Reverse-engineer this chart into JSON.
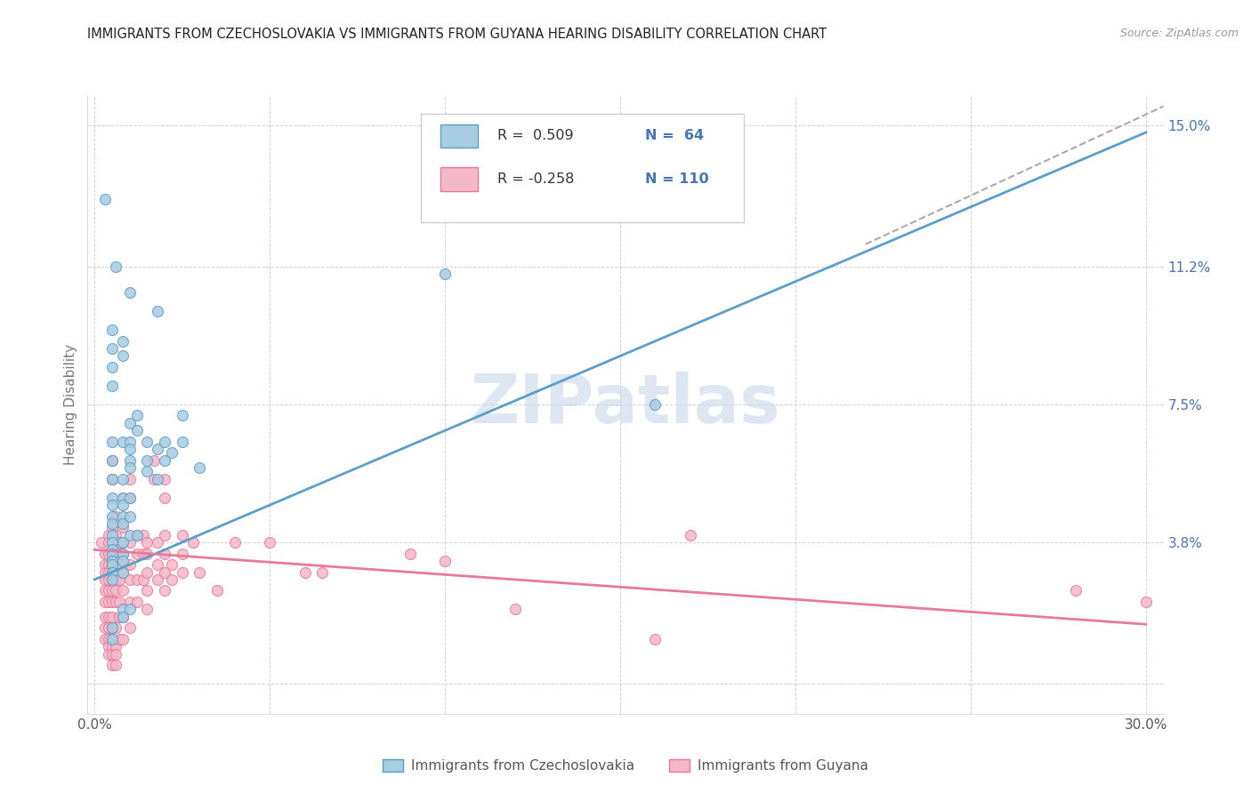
{
  "title": "IMMIGRANTS FROM CZECHOSLOVAKIA VS IMMIGRANTS FROM GUYANA HEARING DISABILITY CORRELATION CHART",
  "source": "Source: ZipAtlas.com",
  "ylabel": "Hearing Disability",
  "yticks": [
    0.0,
    0.038,
    0.075,
    0.112,
    0.15
  ],
  "ytick_labels": [
    "",
    "3.8%",
    "7.5%",
    "11.2%",
    "15.0%"
  ],
  "xticks": [
    0.0,
    0.05,
    0.1,
    0.15,
    0.2,
    0.25,
    0.3
  ],
  "xlim": [
    -0.002,
    0.305
  ],
  "ylim": [
    -0.008,
    0.158
  ],
  "color_blue": "#a8cce0",
  "color_blue_edge": "#5b9ec9",
  "color_pink": "#f5b8c8",
  "color_pink_edge": "#e8799a",
  "color_blue_line": "#5b9ec9",
  "color_pink_line": "#e8799a",
  "color_tick_label": "#4575b4",
  "color_n_value": "#4575b4",
  "color_r_label": "#333333",
  "watermark_color": "#c8d8e8",
  "legend_label1": "Immigrants from Czechoslovakia",
  "legend_label2": "Immigrants from Guyana",
  "blue_line": [
    [
      0.0,
      0.028
    ],
    [
      0.3,
      0.148
    ]
  ],
  "pink_line": [
    [
      0.0,
      0.036
    ],
    [
      0.3,
      0.016
    ]
  ],
  "gray_dash_line": [
    [
      0.22,
      0.118
    ],
    [
      0.305,
      0.155
    ]
  ],
  "scatter_blue": [
    [
      0.003,
      0.13
    ],
    [
      0.006,
      0.112
    ],
    [
      0.01,
      0.105
    ],
    [
      0.018,
      0.1
    ],
    [
      0.005,
      0.095
    ],
    [
      0.005,
      0.09
    ],
    [
      0.005,
      0.085
    ],
    [
      0.005,
      0.08
    ],
    [
      0.008,
      0.092
    ],
    [
      0.008,
      0.088
    ],
    [
      0.005,
      0.065
    ],
    [
      0.008,
      0.065
    ],
    [
      0.005,
      0.06
    ],
    [
      0.005,
      0.055
    ],
    [
      0.005,
      0.05
    ],
    [
      0.005,
      0.048
    ],
    [
      0.005,
      0.045
    ],
    [
      0.005,
      0.043
    ],
    [
      0.005,
      0.04
    ],
    [
      0.005,
      0.038
    ],
    [
      0.005,
      0.036
    ],
    [
      0.005,
      0.035
    ],
    [
      0.005,
      0.033
    ],
    [
      0.005,
      0.032
    ],
    [
      0.005,
      0.03
    ],
    [
      0.005,
      0.028
    ],
    [
      0.008,
      0.055
    ],
    [
      0.008,
      0.05
    ],
    [
      0.008,
      0.048
    ],
    [
      0.008,
      0.045
    ],
    [
      0.008,
      0.043
    ],
    [
      0.008,
      0.038
    ],
    [
      0.008,
      0.035
    ],
    [
      0.008,
      0.033
    ],
    [
      0.008,
      0.03
    ],
    [
      0.008,
      0.02
    ],
    [
      0.01,
      0.07
    ],
    [
      0.01,
      0.065
    ],
    [
      0.01,
      0.063
    ],
    [
      0.01,
      0.06
    ],
    [
      0.01,
      0.058
    ],
    [
      0.01,
      0.05
    ],
    [
      0.01,
      0.045
    ],
    [
      0.01,
      0.04
    ],
    [
      0.012,
      0.072
    ],
    [
      0.012,
      0.068
    ],
    [
      0.012,
      0.04
    ],
    [
      0.015,
      0.065
    ],
    [
      0.015,
      0.06
    ],
    [
      0.015,
      0.057
    ],
    [
      0.018,
      0.063
    ],
    [
      0.018,
      0.055
    ],
    [
      0.02,
      0.065
    ],
    [
      0.02,
      0.06
    ],
    [
      0.022,
      0.062
    ],
    [
      0.025,
      0.072
    ],
    [
      0.025,
      0.065
    ],
    [
      0.03,
      0.058
    ],
    [
      0.1,
      0.11
    ],
    [
      0.16,
      0.075
    ],
    [
      0.005,
      0.015
    ],
    [
      0.005,
      0.012
    ],
    [
      0.008,
      0.018
    ],
    [
      0.01,
      0.02
    ]
  ],
  "scatter_pink": [
    [
      0.002,
      0.038
    ],
    [
      0.003,
      0.035
    ],
    [
      0.003,
      0.032
    ],
    [
      0.003,
      0.03
    ],
    [
      0.003,
      0.028
    ],
    [
      0.003,
      0.025
    ],
    [
      0.003,
      0.022
    ],
    [
      0.003,
      0.018
    ],
    [
      0.003,
      0.015
    ],
    [
      0.003,
      0.012
    ],
    [
      0.004,
      0.04
    ],
    [
      0.004,
      0.038
    ],
    [
      0.004,
      0.035
    ],
    [
      0.004,
      0.032
    ],
    [
      0.004,
      0.03
    ],
    [
      0.004,
      0.028
    ],
    [
      0.004,
      0.025
    ],
    [
      0.004,
      0.022
    ],
    [
      0.004,
      0.018
    ],
    [
      0.004,
      0.015
    ],
    [
      0.004,
      0.012
    ],
    [
      0.004,
      0.01
    ],
    [
      0.004,
      0.008
    ],
    [
      0.005,
      0.06
    ],
    [
      0.005,
      0.055
    ],
    [
      0.005,
      0.042
    ],
    [
      0.005,
      0.038
    ],
    [
      0.005,
      0.035
    ],
    [
      0.005,
      0.032
    ],
    [
      0.005,
      0.03
    ],
    [
      0.005,
      0.028
    ],
    [
      0.005,
      0.025
    ],
    [
      0.005,
      0.022
    ],
    [
      0.005,
      0.018
    ],
    [
      0.005,
      0.015
    ],
    [
      0.005,
      0.012
    ],
    [
      0.005,
      0.01
    ],
    [
      0.005,
      0.008
    ],
    [
      0.005,
      0.005
    ],
    [
      0.006,
      0.045
    ],
    [
      0.006,
      0.04
    ],
    [
      0.006,
      0.035
    ],
    [
      0.006,
      0.032
    ],
    [
      0.006,
      0.028
    ],
    [
      0.006,
      0.025
    ],
    [
      0.006,
      0.022
    ],
    [
      0.006,
      0.015
    ],
    [
      0.006,
      0.01
    ],
    [
      0.006,
      0.008
    ],
    [
      0.006,
      0.005
    ],
    [
      0.007,
      0.038
    ],
    [
      0.007,
      0.035
    ],
    [
      0.007,
      0.032
    ],
    [
      0.007,
      0.028
    ],
    [
      0.007,
      0.022
    ],
    [
      0.007,
      0.018
    ],
    [
      0.007,
      0.012
    ],
    [
      0.008,
      0.05
    ],
    [
      0.008,
      0.042
    ],
    [
      0.008,
      0.038
    ],
    [
      0.008,
      0.035
    ],
    [
      0.008,
      0.03
    ],
    [
      0.008,
      0.025
    ],
    [
      0.008,
      0.018
    ],
    [
      0.008,
      0.012
    ],
    [
      0.01,
      0.055
    ],
    [
      0.01,
      0.05
    ],
    [
      0.01,
      0.038
    ],
    [
      0.01,
      0.032
    ],
    [
      0.01,
      0.028
    ],
    [
      0.01,
      0.022
    ],
    [
      0.01,
      0.015
    ],
    [
      0.012,
      0.04
    ],
    [
      0.012,
      0.035
    ],
    [
      0.012,
      0.028
    ],
    [
      0.012,
      0.022
    ],
    [
      0.014,
      0.04
    ],
    [
      0.014,
      0.035
    ],
    [
      0.014,
      0.028
    ],
    [
      0.015,
      0.038
    ],
    [
      0.015,
      0.035
    ],
    [
      0.015,
      0.03
    ],
    [
      0.015,
      0.025
    ],
    [
      0.015,
      0.02
    ],
    [
      0.017,
      0.06
    ],
    [
      0.017,
      0.055
    ],
    [
      0.018,
      0.038
    ],
    [
      0.018,
      0.032
    ],
    [
      0.018,
      0.028
    ],
    [
      0.02,
      0.055
    ],
    [
      0.02,
      0.05
    ],
    [
      0.02,
      0.04
    ],
    [
      0.02,
      0.035
    ],
    [
      0.02,
      0.03
    ],
    [
      0.02,
      0.025
    ],
    [
      0.022,
      0.032
    ],
    [
      0.022,
      0.028
    ],
    [
      0.025,
      0.04
    ],
    [
      0.025,
      0.035
    ],
    [
      0.025,
      0.03
    ],
    [
      0.028,
      0.038
    ],
    [
      0.03,
      0.03
    ],
    [
      0.035,
      0.025
    ],
    [
      0.04,
      0.038
    ],
    [
      0.05,
      0.038
    ],
    [
      0.06,
      0.03
    ],
    [
      0.065,
      0.03
    ],
    [
      0.09,
      0.035
    ],
    [
      0.1,
      0.033
    ],
    [
      0.12,
      0.02
    ],
    [
      0.16,
      0.012
    ],
    [
      0.17,
      0.04
    ],
    [
      0.28,
      0.025
    ],
    [
      0.3,
      0.022
    ]
  ]
}
